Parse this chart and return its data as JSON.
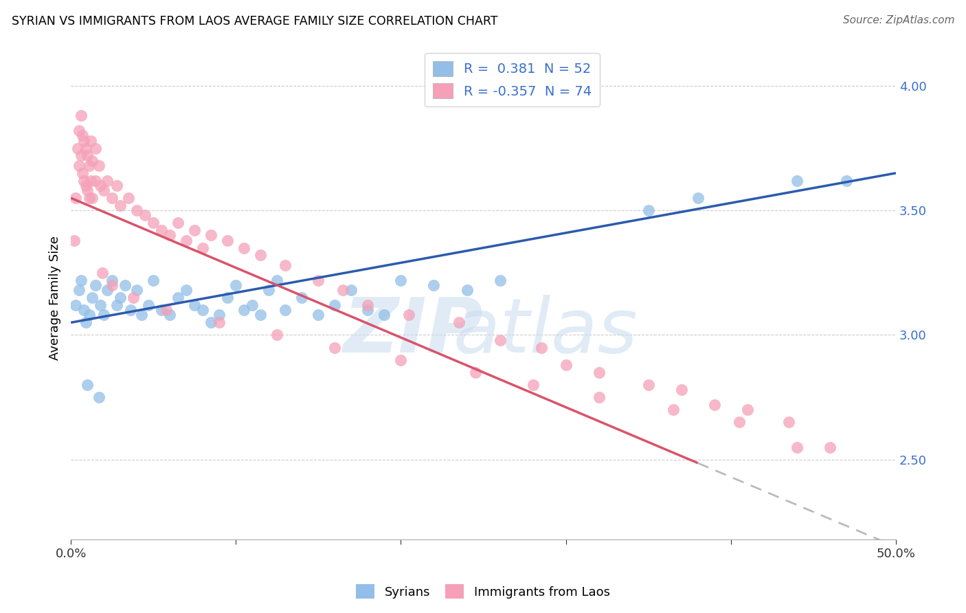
{
  "title": "SYRIAN VS IMMIGRANTS FROM LAOS AVERAGE FAMILY SIZE CORRELATION CHART",
  "source": "Source: ZipAtlas.com",
  "ylabel": "Average Family Size",
  "ylim": [
    2.18,
    4.12
  ],
  "xlim": [
    0.0,
    50.0
  ],
  "yticks": [
    2.5,
    3.0,
    3.5,
    4.0
  ],
  "xticks": [
    0,
    10,
    20,
    30,
    40,
    50
  ],
  "blue_color": "#92BEE8",
  "pink_color": "#F5A0B8",
  "blue_line_color": "#2B5BAD",
  "pink_line_color": "#D9536A",
  "watermark_zip": "ZIP",
  "watermark_atlas": "atlas",
  "background_color": "#FFFFFF",
  "legend_label_blue": "Syrians",
  "legend_label_pink": "Immigrants from Laos",
  "blue_line_x0": 0.0,
  "blue_line_y0": 3.05,
  "blue_line_x1": 50.0,
  "blue_line_y1": 3.65,
  "pink_line_x0": 0.0,
  "pink_line_y0": 3.55,
  "pink_line_x1": 50.0,
  "pink_line_y1": 2.15,
  "pink_solid_end": 38.0,
  "blue_x": [
    0.3,
    0.5,
    0.6,
    0.8,
    0.9,
    1.1,
    1.3,
    1.5,
    1.8,
    2.0,
    2.2,
    2.5,
    2.8,
    3.0,
    3.3,
    3.6,
    4.0,
    4.3,
    4.7,
    5.0,
    5.5,
    6.0,
    6.5,
    7.0,
    7.5,
    8.0,
    8.5,
    9.0,
    9.5,
    10.0,
    10.5,
    11.0,
    11.5,
    12.0,
    12.5,
    13.0,
    14.0,
    15.0,
    16.0,
    17.0,
    18.0,
    19.0,
    20.0,
    22.0,
    24.0,
    26.0,
    35.0,
    38.0,
    44.0,
    47.0,
    1.0,
    1.7
  ],
  "blue_y": [
    3.12,
    3.18,
    3.22,
    3.1,
    3.05,
    3.08,
    3.15,
    3.2,
    3.12,
    3.08,
    3.18,
    3.22,
    3.12,
    3.15,
    3.2,
    3.1,
    3.18,
    3.08,
    3.12,
    3.22,
    3.1,
    3.08,
    3.15,
    3.18,
    3.12,
    3.1,
    3.05,
    3.08,
    3.15,
    3.2,
    3.1,
    3.12,
    3.08,
    3.18,
    3.22,
    3.1,
    3.15,
    3.08,
    3.12,
    3.18,
    3.1,
    3.08,
    3.22,
    3.2,
    3.18,
    3.22,
    3.5,
    3.55,
    3.62,
    3.62,
    2.8,
    2.75
  ],
  "pink_x": [
    0.2,
    0.3,
    0.4,
    0.5,
    0.5,
    0.6,
    0.6,
    0.7,
    0.7,
    0.8,
    0.8,
    0.9,
    0.9,
    1.0,
    1.0,
    1.1,
    1.1,
    1.2,
    1.2,
    1.3,
    1.3,
    1.5,
    1.5,
    1.7,
    1.8,
    2.0,
    2.2,
    2.5,
    2.8,
    3.0,
    3.5,
    4.0,
    4.5,
    5.0,
    5.5,
    6.0,
    6.5,
    7.0,
    7.5,
    8.0,
    8.5,
    9.5,
    10.5,
    11.5,
    13.0,
    15.0,
    16.5,
    18.0,
    20.5,
    23.5,
    26.0,
    28.5,
    30.0,
    32.0,
    35.0,
    37.0,
    39.0,
    41.0,
    43.5,
    46.0,
    1.9,
    2.5,
    3.8,
    5.8,
    9.0,
    12.5,
    16.0,
    20.0,
    24.5,
    28.0,
    32.0,
    36.5,
    40.5,
    44.0
  ],
  "pink_y": [
    3.38,
    3.55,
    3.75,
    3.68,
    3.82,
    3.72,
    3.88,
    3.65,
    3.8,
    3.62,
    3.78,
    3.6,
    3.75,
    3.58,
    3.72,
    3.55,
    3.68,
    3.62,
    3.78,
    3.55,
    3.7,
    3.62,
    3.75,
    3.68,
    3.6,
    3.58,
    3.62,
    3.55,
    3.6,
    3.52,
    3.55,
    3.5,
    3.48,
    3.45,
    3.42,
    3.4,
    3.45,
    3.38,
    3.42,
    3.35,
    3.4,
    3.38,
    3.35,
    3.32,
    3.28,
    3.22,
    3.18,
    3.12,
    3.08,
    3.05,
    2.98,
    2.95,
    2.88,
    2.85,
    2.8,
    2.78,
    2.72,
    2.7,
    2.65,
    2.55,
    3.25,
    3.2,
    3.15,
    3.1,
    3.05,
    3.0,
    2.95,
    2.9,
    2.85,
    2.8,
    2.75,
    2.7,
    2.65,
    2.55
  ]
}
